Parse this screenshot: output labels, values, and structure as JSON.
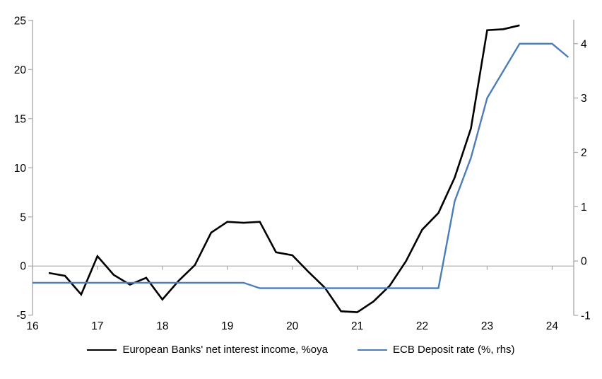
{
  "chart_data": {
    "type": "line",
    "title": "",
    "x_axis": {
      "ticks": [
        16,
        17,
        18,
        19,
        20,
        21,
        22,
        23,
        24
      ],
      "range": [
        16,
        24.333
      ]
    },
    "left_axis": {
      "ticks": [
        -5,
        0,
        5,
        10,
        15,
        20,
        25
      ],
      "range": [
        -5.02,
        25.06
      ]
    },
    "right_axis": {
      "ticks": [
        -1,
        0,
        1,
        2,
        3,
        4
      ],
      "range": [
        -1.0,
        4.44
      ]
    },
    "grid": "zero-line-only",
    "legend_position": "bottom-center",
    "axis_color": "#a6a6a6",
    "zero_line_color": "#b0b0b0",
    "series": [
      {
        "name": "European Banks' net interest income, %oya",
        "axis": "left",
        "color": "#000000",
        "x": [
          16.25,
          16.5,
          16.75,
          17.0,
          17.25,
          17.5,
          17.75,
          18.0,
          18.25,
          18.5,
          18.75,
          19.0,
          19.25,
          19.5,
          19.75,
          20.0,
          20.25,
          20.5,
          20.75,
          21.0,
          21.25,
          21.5,
          21.75,
          22.0,
          22.25,
          22.5,
          22.75,
          23.0,
          23.25,
          23.5
        ],
        "values": [
          -0.7,
          -1.0,
          -2.9,
          1.0,
          -0.9,
          -1.9,
          -1.2,
          -3.4,
          -1.5,
          0.1,
          3.4,
          4.5,
          4.4,
          4.5,
          1.4,
          1.1,
          -0.6,
          -2.2,
          -4.6,
          -4.7,
          -3.6,
          -2.0,
          0.5,
          3.7,
          5.4,
          9.0,
          14.0,
          24.0,
          24.1,
          24.5
        ]
      },
      {
        "name": "ECB Deposit rate (%, rhs)",
        "axis": "right",
        "color": "#4b7db9",
        "x": [
          16.0,
          19.25,
          19.5,
          22.25,
          22.5,
          22.75,
          23.0,
          23.25,
          23.5,
          24.0,
          24.25
        ],
        "values": [
          -0.4,
          -0.4,
          -0.5,
          -0.5,
          1.1,
          1.9,
          3.0,
          3.5,
          4.0,
          4.0,
          3.75
        ]
      }
    ]
  },
  "legend": {
    "items": [
      {
        "label": "European Banks' net interest income, %oya",
        "color": "#000000"
      },
      {
        "label": "ECB Deposit rate (%, rhs)",
        "color": "#4b7db9"
      }
    ]
  }
}
